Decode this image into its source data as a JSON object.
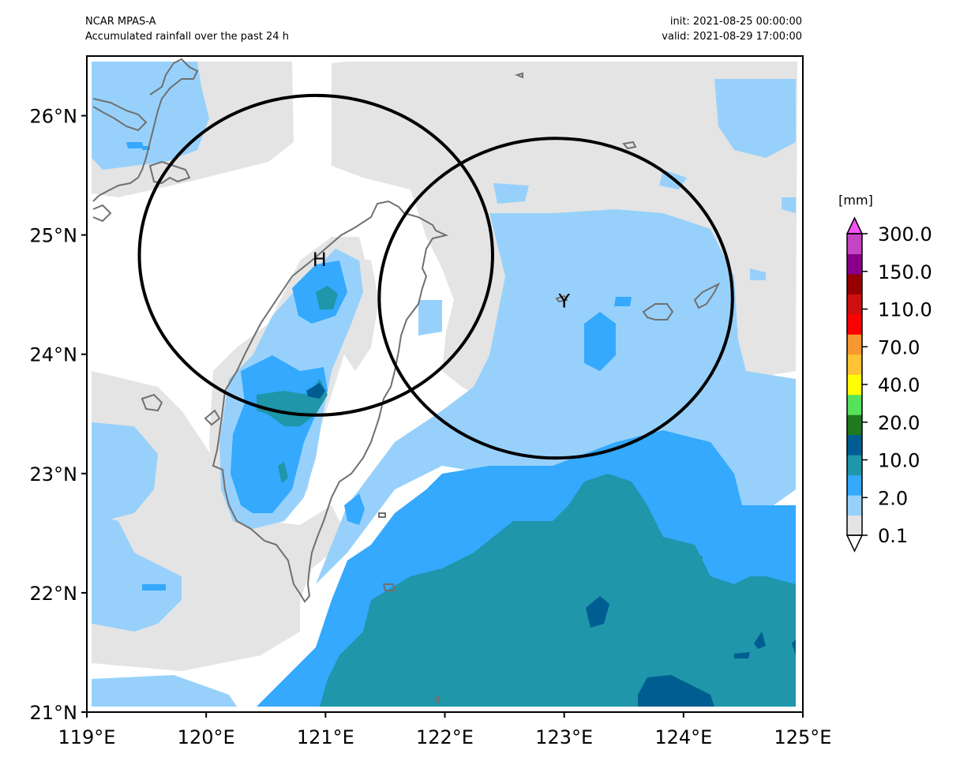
{
  "header": {
    "model": "NCAR MPAS-A",
    "description": "Accumulated rainfall over the past 24 h",
    "init": "init: 2021-08-25 00:00:00",
    "valid": "valid: 2021-08-29 17:00:00"
  },
  "map": {
    "lon_range": [
      119,
      125
    ],
    "lat_range": [
      21,
      26.5
    ],
    "lon_ticks": [
      "119°E",
      "120°E",
      "121°E",
      "122°E",
      "123°E",
      "124°E",
      "125°E"
    ],
    "lat_ticks": [
      "21°N",
      "22°N",
      "23°N",
      "24°N",
      "25°N",
      "26°N"
    ],
    "markers": [
      {
        "label": "H",
        "lon": 120.95,
        "lat": 24.8
      },
      {
        "label": "Y",
        "lon": 123.0,
        "lat": 24.45
      }
    ],
    "circles": [
      {
        "center_lon": 120.92,
        "center_lat": 24.83,
        "radius_deg_lon": 1.48,
        "radius_deg_lat": 1.34
      },
      {
        "center_lon": 122.93,
        "center_lat": 24.47,
        "radius_deg_lon": 1.48,
        "radius_deg_lat": 1.34
      }
    ],
    "colors": {
      "coastline": "#707070",
      "circle": "#000000",
      "land_bg": "#ffffff"
    }
  },
  "colorbar": {
    "unit": "[mm]",
    "labels": [
      "0.1",
      "2.0",
      "10.0",
      "20.0",
      "40.0",
      "70.0",
      "110.0",
      "150.0",
      "300.0"
    ],
    "levels": [
      "#e4e4e4",
      "#97d1fb",
      "#34a9fd",
      "#1f96a9",
      "#005d92",
      "#20791f",
      "#57e25d",
      "#ffff00",
      "#ffc335",
      "#f69930",
      "#ff0000",
      "#cd0f0f",
      "#970000",
      "#880088",
      "#c444c4"
    ],
    "under_color": "#ffffff",
    "over_color": "#f451f4"
  }
}
